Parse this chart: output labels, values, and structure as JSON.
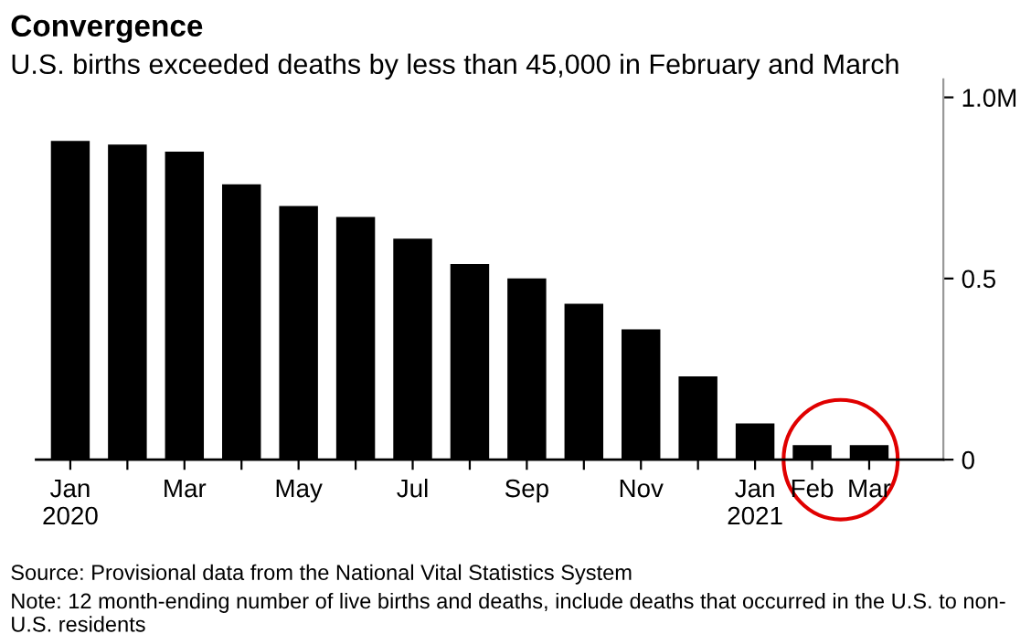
{
  "chart_data": {
    "type": "bar",
    "title": "Convergence",
    "subtitle": "U.S. births exceeded deaths by less than 45,000 in February and March",
    "categories": [
      "Jan\n2020",
      null,
      "Mar",
      null,
      "May",
      null,
      "Jul",
      null,
      "Sep",
      null,
      "Nov",
      null,
      "Jan\n2021",
      "Feb",
      "Mar"
    ],
    "values": [
      0.88,
      0.87,
      0.85,
      0.76,
      0.7,
      0.67,
      0.61,
      0.54,
      0.5,
      0.43,
      0.36,
      0.23,
      0.1,
      0.04,
      0.04
    ],
    "color": "#000000",
    "ylim": [
      0,
      1.05
    ],
    "yticks": [
      0,
      0.5,
      {
        "value": 1.0,
        "label": "1.0M"
      }
    ],
    "grid": false,
    "annotations": [
      "Source: Provisional data from the National Vital Statistics System",
      "Note: 12 month-ending number of live births and deaths, include deaths that occurred in the U.S. to non- U.S. residents"
    ]
  }
}
